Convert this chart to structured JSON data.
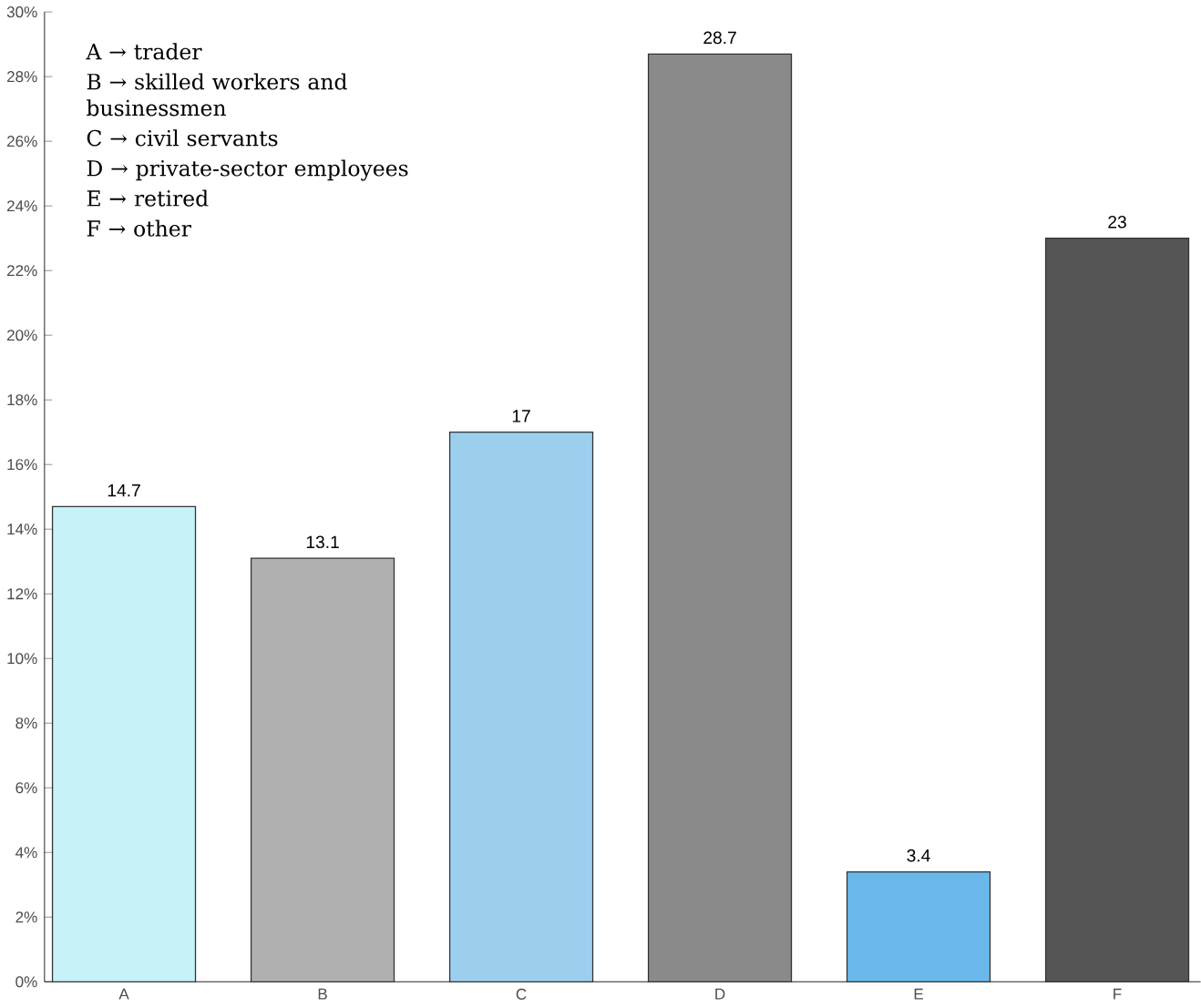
{
  "chart_data": {
    "type": "bar",
    "categories": [
      "A",
      "B",
      "C",
      "D",
      "E",
      "F"
    ],
    "values": [
      14.7,
      13.1,
      17,
      28.7,
      3.4,
      23
    ],
    "colors": [
      "#c6f2f8",
      "#b0b0b0",
      "#9ccfee",
      "#8a8a8a",
      "#6ab8ea",
      "#555555"
    ],
    "value_labels": [
      "14.7",
      "13.1",
      "17",
      "28.7",
      "3.4",
      "23"
    ],
    "ylim": [
      0,
      30
    ],
    "yticks": [
      {
        "value": 0,
        "label": "0%"
      },
      {
        "value": 2,
        "label": "2%"
      },
      {
        "value": 4,
        "label": "4%"
      },
      {
        "value": 6,
        "label": "6%"
      },
      {
        "value": 8,
        "label": "8%"
      },
      {
        "value": 10,
        "label": "10%"
      },
      {
        "value": 12,
        "label": "12%"
      },
      {
        "value": 14,
        "label": "14%"
      },
      {
        "value": 16,
        "label": "16%"
      },
      {
        "value": 18,
        "label": "18%"
      },
      {
        "value": 20,
        "label": "20%"
      },
      {
        "value": 22,
        "label": "22%"
      },
      {
        "value": 24,
        "label": "24%"
      },
      {
        "value": 26,
        "label": "26%"
      },
      {
        "value": 28,
        "label": "28%"
      },
      {
        "value": 30,
        "label": "30%"
      }
    ],
    "annotations": [
      "A → trader",
      "B → skilled workers and businessmen",
      "C → civil servants",
      "D → private-sector employees",
      "E → retired",
      "F → other"
    ],
    "grid": false
  }
}
